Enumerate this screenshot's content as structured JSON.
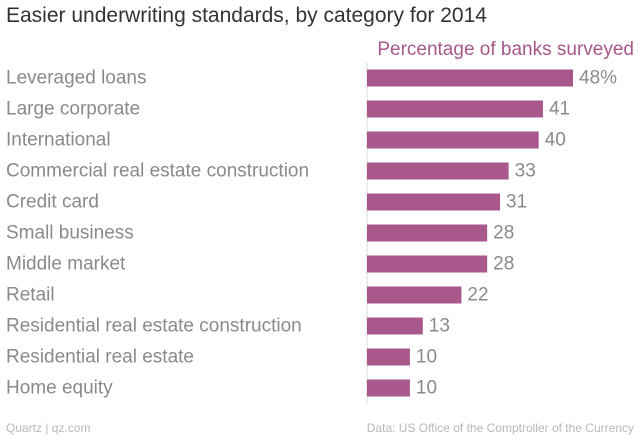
{
  "title": "Easier underwriting standards, by category for 2014",
  "accent_color": "#a8588b",
  "label_color": "#8a8a8a",
  "value_color": "#8a8a8a",
  "footer": {
    "left": "Quartz | qz.com",
    "right": "Data: US Office of the Comptroller of the Currency"
  },
  "chart_data": {
    "type": "bar",
    "orientation": "horizontal",
    "title": "Easier underwriting standards, by category for 2014",
    "series_label": "Percentage of banks surveyed",
    "categories": [
      "Leveraged loans",
      "Large corporate",
      "International",
      "Commercial real estate construction",
      "Credit card",
      "Small business",
      "Middle market",
      "Retail",
      "Residential real estate construction",
      "Residential real estate",
      "Home equity"
    ],
    "values": [
      48,
      41,
      40,
      33,
      31,
      28,
      28,
      22,
      13,
      10,
      10
    ],
    "value_labels": [
      "48%",
      "41",
      "40",
      "33",
      "31",
      "28",
      "28",
      "22",
      "13",
      "10",
      "10"
    ],
    "xlim": [
      0,
      48
    ],
    "grid": false,
    "legend": "none"
  }
}
